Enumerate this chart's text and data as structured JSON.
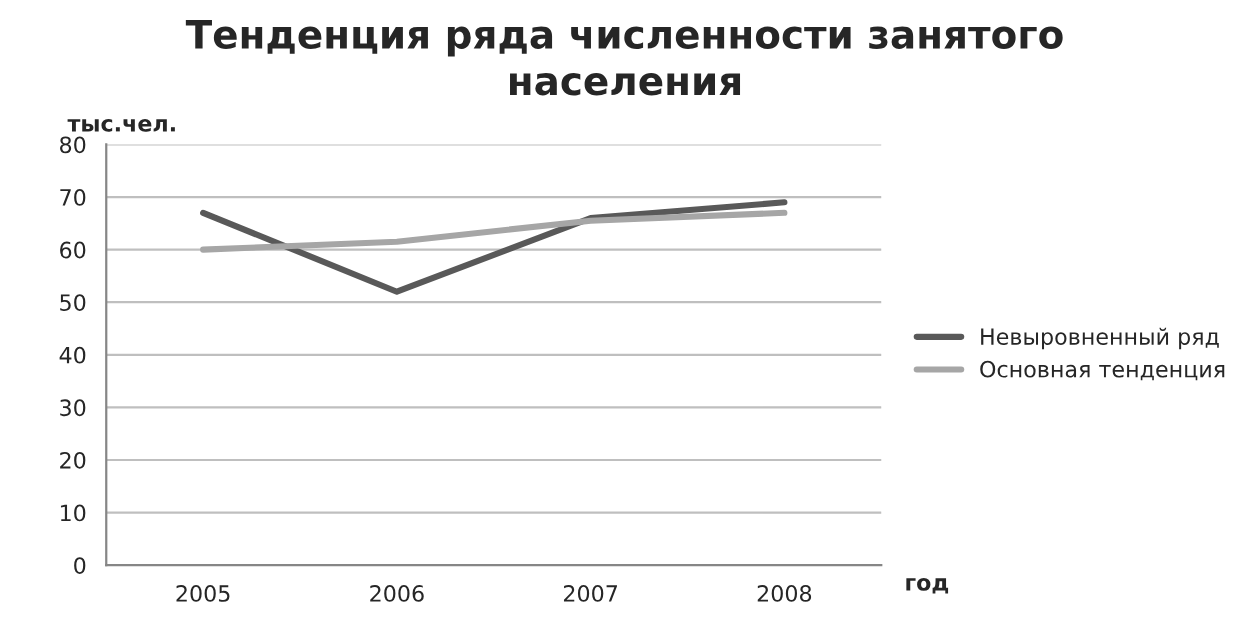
{
  "chart_data": {
    "type": "line",
    "title": "Тенденция ряда численности занятого\nнаселения",
    "ylabel": "тыс.чел.",
    "xlabel": "год",
    "categories": [
      "2005",
      "2006",
      "2007",
      "2008"
    ],
    "series": [
      {
        "name": "Невыровненный ряд",
        "color": "#595959",
        "values": [
          67,
          52,
          66,
          69
        ]
      },
      {
        "name": "Основная тенденция",
        "color": "#a6a6a6",
        "values": [
          60,
          61.5,
          65.5,
          67
        ]
      }
    ],
    "ylim": [
      0,
      80
    ],
    "yticks": [
      0,
      10,
      20,
      30,
      40,
      50,
      60,
      70,
      80
    ],
    "grid": "y",
    "legend": "right",
    "marker": "none",
    "line_style": "solid"
  }
}
